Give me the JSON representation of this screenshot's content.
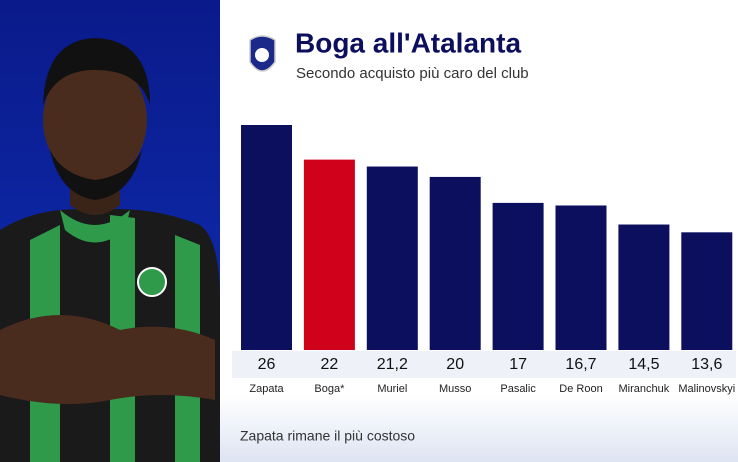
{
  "chart_data": {
    "type": "bar",
    "title": "Boga all'Atalanta",
    "subtitle": "Secondo acquisto più caro del club",
    "categories": [
      "Zapata",
      "Boga*",
      "Muriel",
      "Musso",
      "Pasalic",
      "De Roon",
      "Miranchuk",
      "Malinovskyi"
    ],
    "values": [
      26,
      22,
      21.2,
      20,
      17,
      16.7,
      14.5,
      13.6
    ],
    "value_labels": [
      "26",
      "22",
      "21,2",
      "20",
      "17",
      "16,7",
      "14,5",
      "13,6"
    ],
    "colors": [
      "#0b0f5e",
      "#d0021b",
      "#0b0f5e",
      "#0b0f5e",
      "#0b0f5e",
      "#0b0f5e",
      "#0b0f5e",
      "#0b0f5e"
    ],
    "annotation": "Zapata rimane il più costoso"
  }
}
